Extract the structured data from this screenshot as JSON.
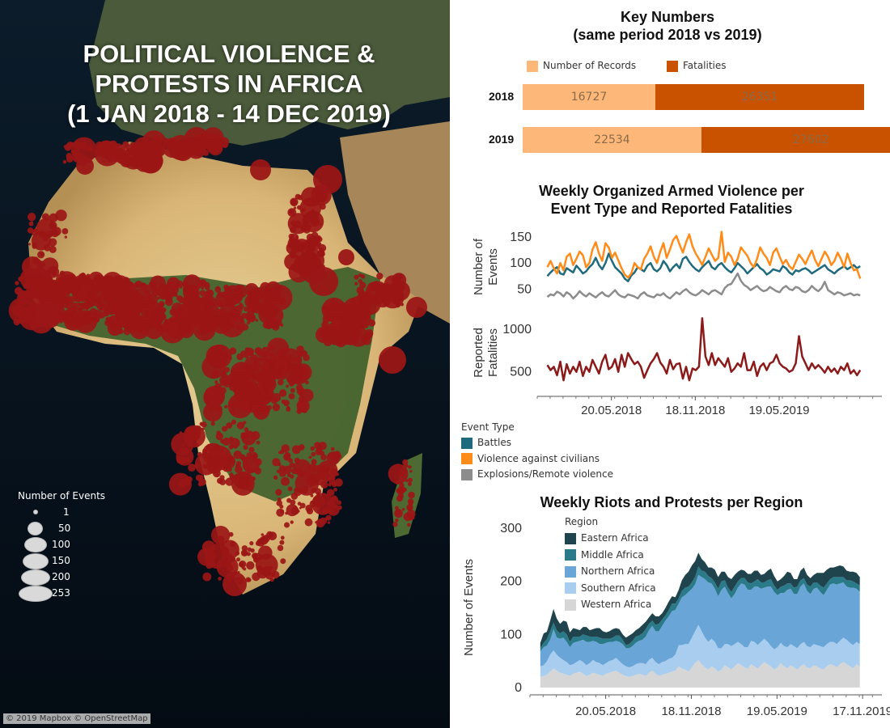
{
  "map": {
    "title_lines": [
      "POLITICAL VIOLENCE &",
      "PROTESTS IN AFRICA",
      "(1 JAN 2018 - 14 DEC 2019)"
    ],
    "marker_color": "#9b1616",
    "size_legend": {
      "title": "Number of Events",
      "items": [
        {
          "label": "1",
          "value": 1
        },
        {
          "label": "50",
          "value": 50
        },
        {
          "label": "100",
          "value": 100
        },
        {
          "label": "150",
          "value": 150
        },
        {
          "label": "200",
          "value": 200
        },
        {
          "label": "253",
          "value": 253
        }
      ]
    },
    "attribution": "© 2019 Mapbox © OpenStreetMap"
  },
  "key_numbers": {
    "title_line1": "Key Numbers",
    "title_line2": "(same period 2018 vs 2019)",
    "legend": [
      {
        "label": "Number of Records",
        "color": "#fdb879"
      },
      {
        "label": "Fatalities",
        "color": "#c85200"
      }
    ]
  },
  "armed_violence": {
    "title_line1": "Weekly Organized Armed Violence per",
    "title_line2": "Event Type and Reported Fatalities",
    "events_axis_title": "Number of Events",
    "fatalities_axis_title": "Reported Fatalities",
    "legend_title": "Event Type",
    "legend": [
      {
        "label": "Battles",
        "color": "#1f6a7c"
      },
      {
        "label": "Violence against civilians",
        "color": "#ff8c1a"
      },
      {
        "label": "Explosions/Remote violence",
        "color": "#8c8c8c"
      }
    ]
  },
  "riots": {
    "title": "Weekly Riots and Protests per Region",
    "axis_title": "Number of Events",
    "legend_title": "Region"
  },
  "chart_data": [
    {
      "type": "bar",
      "orientation": "horizontal",
      "stacked": true,
      "categories": [
        "2018",
        "2019"
      ],
      "series": [
        {
          "name": "Number of Records",
          "values": [
            16727,
            22534
          ],
          "color": "#fdb879"
        },
        {
          "name": "Fatalities",
          "values": [
            26351,
            27602
          ],
          "color": "#c85200"
        }
      ],
      "xlim": [
        0,
        51000
      ]
    },
    {
      "type": "line",
      "x_start": "2018-01-01",
      "x_interval_days": 7,
      "x_ticks": [
        "20.05.2018",
        "18.11.2018",
        "19.05.2019"
      ],
      "x_tick_dates": [
        "2018-05-20",
        "2018-11-18",
        "2019-05-19"
      ],
      "x_range": [
        "2017-12-10",
        "2019-12-28"
      ],
      "ylim": [
        15,
        170
      ],
      "y_ticks": [
        50,
        100,
        150
      ],
      "series": [
        {
          "name": "Battles",
          "color": "#1f6a7c",
          "values": [
            75,
            82,
            88,
            92,
            80,
            78,
            90,
            86,
            82,
            95,
            88,
            80,
            84,
            92,
            98,
            110,
            96,
            88,
            100,
            118,
            104,
            92,
            86,
            80,
            70,
            65,
            76,
            82,
            92,
            88,
            84,
            95,
            100,
            88,
            84,
            90,
            104,
            96,
            84,
            92,
            98,
            90,
            108,
            112,
            102,
            94,
            88,
            84,
            92,
            98,
            104,
            92,
            88,
            96,
            100,
            92,
            86,
            82,
            90,
            100,
            94,
            88,
            80,
            86,
            92,
            98,
            90,
            86,
            78,
            82,
            88,
            86,
            84,
            94,
            90,
            82,
            78,
            86,
            84,
            88,
            90,
            86,
            80,
            84,
            88,
            92,
            96,
            88,
            84,
            80,
            86,
            90,
            94,
            88,
            92,
            96,
            90,
            94
          ]
        },
        {
          "name": "Violence against civilians",
          "color": "#ff8c1a",
          "values": [
            92,
            104,
            90,
            80,
            100,
            86,
            112,
            118,
            96,
            108,
            122,
            115,
            92,
            100,
            126,
            140,
            118,
            104,
            138,
            130,
            110,
            120,
            105,
            90,
            78,
            72,
            80,
            100,
            92,
            88,
            108,
            118,
            132,
            112,
            100,
            122,
            138,
            110,
            126,
            144,
            152,
            135,
            120,
            140,
            155,
            132,
            118,
            108,
            96,
            112,
            128,
            116,
            104,
            110,
            160,
            102,
            120,
            112,
            96,
            108,
            130,
            122,
            114,
            100,
            92,
            108,
            130,
            118,
            110,
            96,
            120,
            128,
            112,
            98,
            106,
            94,
            88,
            102,
            116,
            108,
            98,
            112,
            124,
            106,
            94,
            108,
            122,
            112,
            96,
            104,
            120,
            108,
            92,
            118,
            100,
            86,
            88,
            70
          ]
        },
        {
          "name": "Explosions/Remote violence",
          "color": "#8c8c8c",
          "values": [
            35,
            40,
            38,
            45,
            42,
            36,
            44,
            40,
            32,
            38,
            46,
            40,
            36,
            42,
            38,
            34,
            40,
            44,
            38,
            36,
            42,
            48,
            40,
            36,
            34,
            40,
            38,
            36,
            32,
            40,
            44,
            38,
            36,
            34,
            40,
            38,
            42,
            36,
            32,
            38,
            44,
            40,
            46,
            50,
            44,
            40,
            38,
            42,
            48,
            44,
            40,
            46,
            48,
            44,
            40,
            52,
            58,
            60,
            70,
            80,
            66,
            58,
            54,
            48,
            52,
            56,
            50,
            46,
            48,
            54,
            50,
            46,
            44,
            52,
            56,
            50,
            48,
            54,
            52,
            46,
            44,
            48,
            56,
            50,
            46,
            52,
            64,
            48,
            44,
            40,
            44,
            42,
            38,
            40,
            42,
            38,
            40,
            38
          ]
        }
      ]
    },
    {
      "type": "line",
      "x_start": "2018-01-01",
      "x_interval_days": 7,
      "x_ticks": [
        "20.05.2018",
        "18.11.2018",
        "19.05.2019"
      ],
      "x_tick_dates": [
        "2018-05-20",
        "2018-11-18",
        "2019-05-19"
      ],
      "x_range": [
        "2017-12-10",
        "2019-12-28"
      ],
      "ylim": [
        250,
        1200
      ],
      "y_ticks": [
        500,
        1000
      ],
      "series": [
        {
          "name": "Reported Fatalities",
          "color": "#8b1a1a",
          "values": [
            580,
            520,
            560,
            460,
            620,
            400,
            590,
            480,
            560,
            500,
            620,
            450,
            560,
            500,
            640,
            560,
            480,
            620,
            700,
            530,
            560,
            650,
            500,
            700,
            560,
            720,
            650,
            590,
            620,
            560,
            430,
            520,
            600,
            650,
            720,
            610,
            560,
            480,
            640,
            530,
            590,
            600,
            420,
            560,
            400,
            540,
            520,
            560,
            1130,
            680,
            580,
            720,
            580,
            660,
            610,
            560,
            660,
            500,
            540,
            600,
            560,
            720,
            520,
            520,
            620,
            450,
            560,
            600,
            520,
            600,
            620,
            700,
            600,
            560,
            540,
            500,
            520,
            600,
            920,
            680,
            600,
            520,
            600,
            540,
            580,
            540,
            490,
            560,
            500,
            540,
            480,
            560,
            520,
            600,
            480,
            520,
            460,
            520
          ]
        }
      ]
    },
    {
      "type": "area",
      "stacked": true,
      "x_start": "2018-01-01",
      "x_interval_days": 7,
      "x_ticks": [
        "20.05.2018",
        "18.11.2018",
        "19.05.2019",
        "17.11.2019"
      ],
      "x_tick_dates": [
        "2018-05-20",
        "2018-11-18",
        "2019-05-19",
        "2019-11-17"
      ],
      "x_range": [
        "2017-12-10",
        "2019-12-28"
      ],
      "ylim": [
        -15,
        320
      ],
      "y_ticks": [
        0,
        100,
        200,
        300
      ],
      "series": [
        {
          "name": "Western Africa",
          "color": "#d6d6d6",
          "values": [
            20,
            22,
            24,
            30,
            36,
            32,
            28,
            26,
            24,
            22,
            26,
            28,
            30,
            26,
            22,
            24,
            28,
            26,
            24,
            22,
            26,
            28,
            30,
            32,
            28,
            24,
            22,
            20,
            22,
            24,
            26,
            24,
            22,
            28,
            32,
            26,
            22,
            24,
            26,
            28,
            30,
            32,
            40,
            36,
            34,
            30,
            38,
            46,
            52,
            44,
            38,
            34,
            40,
            36,
            30,
            34,
            42,
            38,
            34,
            40,
            46,
            42,
            38,
            36,
            44,
            40,
            36,
            42,
            48,
            44,
            40,
            34,
            38,
            46,
            40,
            36,
            42,
            38,
            34,
            40,
            44,
            38,
            36,
            42,
            40,
            36,
            34,
            40,
            44,
            42,
            38,
            44,
            48,
            44,
            40,
            36,
            44,
            40
          ]
        },
        {
          "name": "Southern Africa",
          "color": "#a8cdef",
          "values": [
            20,
            20,
            25,
            32,
            34,
            30,
            28,
            26,
            24,
            20,
            18,
            20,
            22,
            22,
            20,
            22,
            24,
            22,
            22,
            20,
            20,
            22,
            22,
            24,
            22,
            20,
            18,
            18,
            18,
            20,
            20,
            22,
            22,
            24,
            24,
            22,
            22,
            24,
            24,
            26,
            26,
            30,
            40,
            44,
            48,
            52,
            56,
            60,
            66,
            62,
            56,
            52,
            52,
            50,
            44,
            40,
            40,
            44,
            44,
            42,
            40,
            40,
            38,
            40,
            44,
            46,
            44,
            44,
            44,
            42,
            38,
            38,
            38,
            38,
            38,
            40,
            40,
            40,
            40,
            42,
            42,
            40,
            40,
            40,
            40,
            42,
            42,
            42,
            42,
            44,
            44,
            44,
            46,
            46,
            44,
            44,
            42,
            42
          ]
        },
        {
          "name": "Northern Africa",
          "color": "#6aa5d8",
          "values": [
            28,
            34,
            30,
            28,
            40,
            32,
            36,
            42,
            38,
            34,
            40,
            38,
            36,
            42,
            44,
            40,
            36,
            38,
            36,
            40,
            38,
            36,
            34,
            32,
            36,
            38,
            34,
            36,
            38,
            40,
            42,
            44,
            52,
            56,
            60,
            58,
            62,
            68,
            76,
            80,
            88,
            84,
            78,
            90,
            92,
            98,
            92,
            88,
            94,
            102,
            110,
            112,
            104,
            100,
            98,
            110,
            108,
            96,
            90,
            94,
            102,
            114,
            118,
            108,
            96,
            104,
            110,
            100,
            96,
            104,
            112,
            108,
            98,
            94,
            100,
            108,
            104,
            98,
            102,
            108,
            110,
            104,
            100,
            104,
            108,
            102,
            98,
            102,
            108,
            110,
            112,
            108,
            104,
            100,
            104,
            108,
            100,
            98
          ]
        },
        {
          "name": "Middle Africa",
          "color": "#2a7a8a",
          "values": [
            6,
            8,
            12,
            16,
            12,
            14,
            10,
            12,
            14,
            10,
            12,
            10,
            8,
            10,
            12,
            10,
            8,
            10,
            12,
            10,
            8,
            6,
            8,
            10,
            12,
            8,
            6,
            8,
            10,
            12,
            10,
            12,
            14,
            12,
            10,
            12,
            14,
            12,
            10,
            12,
            14,
            12,
            10,
            12,
            14,
            10,
            12,
            14,
            16,
            12,
            14,
            12,
            10,
            12,
            14,
            16,
            12,
            10,
            12,
            14,
            12,
            10,
            12,
            14,
            12,
            10,
            14,
            12,
            10,
            12,
            14,
            12,
            10,
            12,
            14,
            12,
            10,
            12,
            14,
            12,
            10,
            12,
            14,
            12,
            10,
            12,
            14,
            12,
            10,
            12,
            14,
            12,
            10,
            12,
            14,
            12,
            10,
            12
          ]
        },
        {
          "name": "Eastern Africa",
          "color": "#20444e",
          "values": [
            10,
            18,
            14,
            20,
            26,
            22,
            18,
            20,
            24,
            18,
            16,
            14,
            12,
            14,
            16,
            12,
            14,
            16,
            18,
            14,
            12,
            14,
            16,
            14,
            12,
            10,
            14,
            16,
            14,
            12,
            14,
            16,
            14,
            12,
            14,
            16,
            14,
            12,
            14,
            16,
            14,
            12,
            16,
            20,
            24,
            28,
            32,
            30,
            26,
            22,
            18,
            16,
            20,
            24,
            22,
            18,
            16,
            20,
            24,
            22,
            18,
            16,
            14,
            16,
            18,
            20,
            16,
            14,
            16,
            18,
            20,
            18,
            16,
            14,
            18,
            22,
            20,
            16,
            14,
            18,
            20,
            18,
            16,
            14,
            18,
            24,
            28,
            26,
            22,
            18,
            20,
            22,
            20,
            18,
            16,
            18,
            20,
            16
          ]
        }
      ]
    }
  ]
}
